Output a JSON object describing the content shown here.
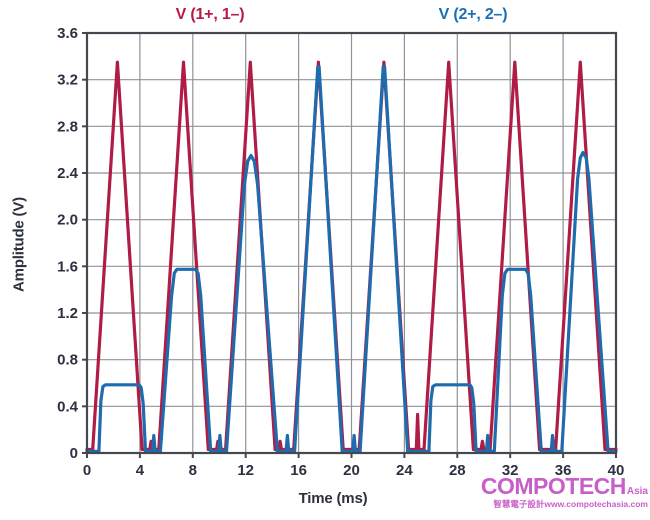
{
  "chart_data": {
    "type": "line",
    "series_titles": {
      "left": {
        "label": "V (1+, 1–)",
        "color": "#b51b45"
      },
      "right": {
        "label": "V (2+, 2–)",
        "color": "#1a6fb5"
      }
    },
    "xlabel": "Time (ms)",
    "ylabel": "Amplitude (V)",
    "xlim": [
      0,
      40
    ],
    "ylim": [
      0,
      3.6
    ],
    "xticks": [
      0,
      4,
      8,
      12,
      16,
      20,
      24,
      28,
      32,
      36,
      40
    ],
    "xtick_labels": [
      "0",
      "4",
      "8",
      "12",
      "16",
      "20",
      "24",
      "28",
      "32",
      "36",
      "40"
    ],
    "yticks": [
      0,
      0.4,
      0.8,
      1.2,
      1.6,
      2.0,
      2.4,
      2.8,
      3.2,
      3.6
    ],
    "ytick_labels": [
      "0",
      "0.4",
      "0.8",
      "1.2",
      "1.6",
      "2.0",
      "2.4",
      "2.8",
      "3.2",
      "3.6"
    ],
    "grid": true,
    "grid_color": "#909297",
    "frame_color": "#46484f",
    "tick_text_color": "#2d3040",
    "series": [
      {
        "name": "V (1+, 1−)",
        "color": "#b01c45",
        "description": "triangular pulses, peak 3.35 V, period 5 ms, centers at 2.3/7.3/12.35/17.5/22.45/27.35/32.35/37.3 ms, plus glitch spike 0.33 V at 25 ms",
        "points": [
          [
            0,
            0.03
          ],
          [
            0.43,
            0.03
          ],
          [
            2.3,
            3.35
          ],
          [
            4.17,
            0.03
          ],
          [
            4.75,
            0.03
          ],
          [
            4.85,
            0.1
          ],
          [
            4.95,
            0.03
          ],
          [
            5.43,
            0.03
          ],
          [
            7.3,
            3.35
          ],
          [
            9.17,
            0.03
          ],
          [
            9.8,
            0.03
          ],
          [
            9.9,
            0.1
          ],
          [
            10.0,
            0.03
          ],
          [
            10.48,
            0.03
          ],
          [
            12.35,
            3.35
          ],
          [
            14.22,
            0.03
          ],
          [
            14.5,
            0.03
          ],
          [
            14.6,
            0.1
          ],
          [
            14.7,
            0.03
          ],
          [
            15.63,
            0.03
          ],
          [
            17.5,
            3.35
          ],
          [
            19.37,
            0.03
          ],
          [
            20.58,
            0.03
          ],
          [
            22.45,
            3.35
          ],
          [
            24.32,
            0.03
          ],
          [
            24.9,
            0.03
          ],
          [
            25.0,
            0.33
          ],
          [
            25.1,
            0.03
          ],
          [
            25.48,
            0.03
          ],
          [
            27.35,
            3.35
          ],
          [
            29.22,
            0.03
          ],
          [
            29.8,
            0.03
          ],
          [
            29.9,
            0.1
          ],
          [
            30.0,
            0.03
          ],
          [
            30.48,
            0.03
          ],
          [
            32.35,
            3.35
          ],
          [
            34.22,
            0.03
          ],
          [
            35.43,
            0.03
          ],
          [
            37.3,
            3.35
          ],
          [
            39.17,
            0.03
          ],
          [
            40,
            0.03
          ]
        ]
      },
      {
        "name": "V (2+, 2−)",
        "color": "#1e6cad",
        "description": "clipped pulses, clip levels per cycle: 0.58, 1.57, 2.55, 3.3, 3.3, 0.58, 1.57, 2.57 V, small 0.15 V notch spikes between cycles",
        "points": [
          [
            0,
            0.015
          ],
          [
            0.9,
            0.015
          ],
          [
            1.05,
            0.45
          ],
          [
            1.2,
            0.57
          ],
          [
            1.4,
            0.585
          ],
          [
            3.95,
            0.585
          ],
          [
            4.1,
            0.56
          ],
          [
            4.25,
            0.42
          ],
          [
            4.42,
            0.015
          ],
          [
            4.95,
            0.015
          ],
          [
            5.05,
            0.15
          ],
          [
            5.15,
            0.015
          ],
          [
            5.55,
            0.015
          ],
          [
            6.4,
            1.35
          ],
          [
            6.6,
            1.54
          ],
          [
            6.8,
            1.575
          ],
          [
            8.2,
            1.575
          ],
          [
            8.4,
            1.54
          ],
          [
            8.6,
            1.35
          ],
          [
            9.35,
            0.015
          ],
          [
            9.95,
            0.015
          ],
          [
            10.05,
            0.15
          ],
          [
            10.15,
            0.015
          ],
          [
            10.55,
            0.015
          ],
          [
            11.9,
            2.3
          ],
          [
            12.15,
            2.5
          ],
          [
            12.4,
            2.55
          ],
          [
            12.65,
            2.5
          ],
          [
            12.9,
            2.3
          ],
          [
            14.4,
            0.015
          ],
          [
            15.05,
            0.015
          ],
          [
            15.15,
            0.15
          ],
          [
            15.25,
            0.015
          ],
          [
            15.7,
            0.015
          ],
          [
            17.45,
            3.31
          ],
          [
            17.55,
            3.31
          ],
          [
            19.3,
            0.015
          ],
          [
            20.1,
            0.015
          ],
          [
            20.2,
            0.15
          ],
          [
            20.3,
            0.015
          ],
          [
            20.65,
            0.015
          ],
          [
            22.4,
            3.31
          ],
          [
            22.5,
            3.31
          ],
          [
            24.25,
            0.015
          ],
          [
            25.85,
            0.015
          ],
          [
            26.0,
            0.45
          ],
          [
            26.15,
            0.57
          ],
          [
            26.35,
            0.585
          ],
          [
            28.95,
            0.585
          ],
          [
            29.1,
            0.56
          ],
          [
            29.25,
            0.42
          ],
          [
            29.42,
            0.015
          ],
          [
            30.2,
            0.015
          ],
          [
            30.3,
            0.15
          ],
          [
            30.4,
            0.015
          ],
          [
            30.8,
            0.015
          ],
          [
            31.4,
            1.35
          ],
          [
            31.6,
            1.54
          ],
          [
            31.8,
            1.575
          ],
          [
            33.15,
            1.575
          ],
          [
            33.35,
            1.54
          ],
          [
            33.55,
            1.35
          ],
          [
            34.35,
            0.015
          ],
          [
            35.1,
            0.015
          ],
          [
            35.2,
            0.15
          ],
          [
            35.3,
            0.015
          ],
          [
            35.9,
            0.015
          ],
          [
            37.1,
            2.35
          ],
          [
            37.3,
            2.53
          ],
          [
            37.5,
            2.575
          ],
          [
            37.75,
            2.53
          ],
          [
            37.95,
            2.35
          ],
          [
            39.4,
            0.015
          ],
          [
            40,
            0.015
          ]
        ]
      }
    ]
  },
  "watermark": {
    "brand": "COMPOTECH",
    "region": "Asia",
    "tagline": "智慧電子設計www.compotechasia.com",
    "color": "#c75fc8"
  }
}
